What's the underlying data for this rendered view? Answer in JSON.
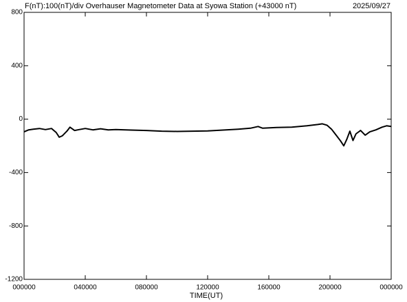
{
  "chart_data": {
    "type": "line",
    "title": "F(nT):100(nT)/div  Overhauser Magnetometer Data at Syowa Station (+43000 nT)",
    "date": "2025/09/27",
    "x_label": "TIME(UT)",
    "x": [
      0,
      0.3,
      0.6,
      1.0,
      1.4,
      1.8,
      2.1,
      2.3,
      2.5,
      2.8,
      3.0,
      3.3,
      3.6,
      4.0,
      4.5,
      5.0,
      5.5,
      6.0,
      7.0,
      8.0,
      9.0,
      10.0,
      11.0,
      12.0,
      13.0,
      14.0,
      14.8,
      15.3,
      15.6,
      16.5,
      17.5,
      18.5,
      19.2,
      19.5,
      19.8,
      20.1,
      20.4,
      20.7,
      20.9,
      21.1,
      21.3,
      21.5,
      21.7,
      22.0,
      22.3,
      22.6,
      23.0,
      23.4,
      23.7,
      24.0
    ],
    "series": [
      {
        "color": "#000000",
        "values": [
          -95,
          -80,
          -75,
          -70,
          -78,
          -70,
          -100,
          -135,
          -125,
          -90,
          -60,
          -85,
          -78,
          -70,
          -80,
          -72,
          -80,
          -78,
          -82,
          -85,
          -90,
          -92,
          -90,
          -88,
          -82,
          -75,
          -68,
          -55,
          -68,
          -62,
          -60,
          -50,
          -40,
          -35,
          -45,
          -75,
          -120,
          -165,
          -200,
          -150,
          -90,
          -160,
          -110,
          -85,
          -120,
          -95,
          -80,
          -60,
          -50,
          -55
        ]
      }
    ],
    "xlim": [
      0,
      24
    ],
    "xticks": [
      {
        "value": 0,
        "label": "000000"
      },
      {
        "value": 4,
        "label": "040000"
      },
      {
        "value": 8,
        "label": "080000"
      },
      {
        "value": 12,
        "label": "120000"
      },
      {
        "value": 16,
        "label": "160000"
      },
      {
        "value": 20,
        "label": "200000"
      },
      {
        "value": 24,
        "label": "000000"
      }
    ],
    "ylim": [
      -1200,
      800
    ],
    "yticks": [
      -1200,
      -800,
      -400,
      0,
      400,
      800
    ]
  }
}
